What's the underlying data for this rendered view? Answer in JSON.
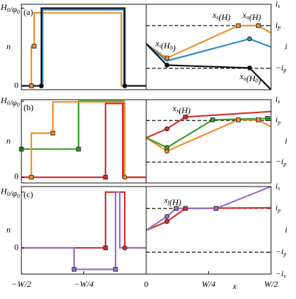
{
  "chart_data": [
    {
      "type": "line",
      "label": "(a)",
      "ylabel": "n",
      "xlim": [
        -0.5,
        0
      ],
      "ylim": [
        -0.05,
        1.05
      ],
      "yticks": [
        0,
        {
          "value": 1,
          "label": "H_0/φ_0"
        }
      ],
      "series": [
        {
          "color": "#f0922e",
          "x": [
            -0.5,
            -0.46,
            -0.46,
            -0.449,
            -0.449,
            -0.1,
            -0.1,
            0
          ],
          "values": [
            0,
            0,
            0.51,
            0.51,
            0.94,
            0.94,
            0,
            0
          ],
          "points": {
            "x": [
              -0.46,
              -0.449
            ],
            "values": [
              0,
              0.51
            ],
            "shapes": [
              "square",
              "square"
            ]
          }
        },
        {
          "color": "#2f8cc4",
          "x": [
            -0.5,
            -0.415,
            -0.415,
            -0.09,
            -0.09,
            0
          ],
          "values": [
            0,
            0,
            0.98,
            0.98,
            0,
            0
          ]
        },
        {
          "color": "#111111",
          "x": [
            -0.5,
            -0.42,
            -0.42,
            -0.086,
            -0.086,
            0
          ],
          "values": [
            0,
            0,
            1,
            1,
            0,
            0
          ],
          "points": {
            "x": [
              -0.42,
              -0.086
            ],
            "values": [
              0,
              0
            ],
            "shapes": [
              "circle",
              "circle"
            ]
          }
        }
      ]
    },
    {
      "type": "line",
      "ylabel": "i",
      "xlim": [
        0,
        0.5
      ],
      "ylim": [
        -2,
        2
      ],
      "yticks": [
        {
          "value": 2,
          "label": "i_s"
        },
        {
          "value": 1,
          "label": "i_p"
        },
        {
          "value": -1,
          "label": "−i_p"
        }
      ],
      "hlines": [
        1,
        -1
      ],
      "annotations": [
        "x_s(H)",
        "x_o(H)",
        "x_i(H_0)",
        "x_o(H_0)"
      ],
      "series": [
        {
          "color": "#f0922e",
          "x": [
            0,
            0.083,
            0.369,
            0.449,
            0.5
          ],
          "values": [
            0.15,
            -0.52,
            1,
            1,
            0.65
          ],
          "points": {
            "x": [
              0.083,
              0.369,
              0.449
            ],
            "values": [
              -0.52,
              1,
              1
            ],
            "shapes": [
              "square",
              "square",
              "square"
            ]
          }
        },
        {
          "color": "#2f8cc4",
          "x": [
            0,
            0.083,
            0.414,
            0.5
          ],
          "values": [
            0.15,
            -0.65,
            0.38,
            0
          ],
          "points": {
            "x": [
              0.414
            ],
            "values": [
              0.38
            ],
            "shapes": [
              "circle"
            ]
          }
        },
        {
          "color": "#111111",
          "x": [
            0,
            0.083,
            0.414,
            0.5
          ],
          "values": [
            0.15,
            -0.85,
            -0.98,
            -2
          ],
          "points": {
            "x": [
              0.083,
              0.414
            ],
            "values": [
              -0.85,
              -0.98
            ],
            "shapes": [
              "circle",
              "circle"
            ]
          }
        }
      ]
    },
    {
      "type": "line",
      "label": "(b)",
      "ylabel": "n",
      "xlim": [
        -0.5,
        0
      ],
      "ylim": [
        -0.075,
        1.02
      ],
      "yticks": [
        0,
        {
          "value": 1,
          "label": "H_0/φ_0"
        }
      ],
      "series": [
        {
          "color": "#3a9e2c",
          "x": [
            -0.5,
            -0.271,
            -0.271,
            -0.091,
            -0.091,
            0
          ],
          "values": [
            0.37,
            0.37,
            1,
            1,
            0,
            0
          ],
          "points": {
            "x": [
              -0.5,
              -0.271
            ],
            "values": [
              0.37,
              0.37
            ],
            "shapes": [
              "square",
              "square"
            ]
          }
        },
        {
          "color": "#f0922e",
          "x": [
            -0.5,
            -0.46,
            -0.46,
            -0.374,
            -0.374,
            -0.086,
            -0.086,
            0
          ],
          "values": [
            0,
            0,
            0.58,
            0.58,
            0.99,
            0.99,
            0,
            0
          ],
          "points": {
            "x": [
              -0.46,
              -0.374,
              -0.086
            ],
            "values": [
              0,
              0.58,
              0
            ],
            "shapes": [
              "square",
              "square",
              "circle"
            ]
          }
        },
        {
          "color": "#d62f2f",
          "x": [
            -0.5,
            -0.163,
            -0.163,
            -0.094,
            -0.094,
            0
          ],
          "values": [
            0,
            0,
            0.97,
            0.97,
            0,
            0
          ],
          "points": {
            "x": [
              -0.163
            ],
            "values": [
              0
            ],
            "shapes": [
              "square"
            ]
          }
        }
      ]
    },
    {
      "type": "line",
      "ylabel": "i",
      "xlim": [
        0,
        0.5
      ],
      "ylim": [
        -2,
        2
      ],
      "yticks": [
        {
          "value": 2,
          "label": "i_s"
        },
        {
          "value": 1,
          "label": "i_p"
        },
        {
          "value": -1,
          "label": "−i_p"
        }
      ],
      "hlines": [
        1,
        -1
      ],
      "annotations": [
        "x_s(H)"
      ],
      "series": [
        {
          "color": "#d62f2f",
          "x": [
            0,
            0.083,
            0.157,
            0.5
          ],
          "values": [
            0.17,
            0.6,
            1.17,
            1.43
          ],
          "points": {
            "x": [
              0.083,
              0.157
            ],
            "values": [
              0.6,
              1.17
            ],
            "shapes": [
              "circle",
              "square"
            ]
          }
        },
        {
          "color": "#f0922e",
          "x": [
            0,
            0.083,
            0.369,
            0.449,
            0.5
          ],
          "values": [
            0.17,
            -0.47,
            1.03,
            1.03,
            0.7
          ],
          "points": {
            "x": [
              0.083,
              0.369,
              0.449
            ],
            "values": [
              -0.47,
              1.03,
              1.03
            ],
            "shapes": [
              "circle",
              "square",
              "square"
            ]
          }
        },
        {
          "color": "#3a9e2c",
          "x": [
            0,
            0.083,
            0.266,
            0.486,
            0.5
          ],
          "values": [
            0.17,
            -0.3,
            1.03,
            1.1,
            1.1
          ],
          "points": {
            "x": [
              0.083,
              0.266,
              0.486
            ],
            "values": [
              -0.3,
              1.03,
              1.1
            ],
            "shapes": [
              "circle",
              "square",
              "square"
            ]
          }
        }
      ]
    },
    {
      "type": "line",
      "label": "(c)",
      "ylabel": "n",
      "xlim": [
        -0.5,
        0
      ],
      "ylim": [
        -0.47,
        1.1
      ],
      "yticks": [
        0,
        {
          "value": 1,
          "label": "H_0/φ_0"
        }
      ],
      "xticks": [
        {
          "value": -0.5,
          "label": "−W/2"
        },
        {
          "value": -0.25,
          "label": "−W/4"
        },
        0
      ],
      "series": [
        {
          "color": "#d62f2f",
          "x": [
            -0.5,
            -0.163,
            -0.163,
            -0.086,
            -0.086,
            0
          ],
          "values": [
            0,
            0,
            1,
            1,
            0,
            0
          ],
          "points": {
            "x": [
              -0.163,
              -0.086
            ],
            "values": [
              0,
              0
            ],
            "shapes": [
              "square",
              "circle"
            ]
          }
        },
        {
          "color": "#9b6fc6",
          "x": [
            -0.5,
            -0.289,
            -0.289,
            -0.123,
            -0.123,
            -0.106,
            -0.106,
            0
          ],
          "values": [
            0,
            0,
            -0.385,
            -0.385,
            1,
            1,
            0,
            0
          ],
          "points": {
            "x": [
              -0.289,
              -0.123
            ],
            "values": [
              -0.385,
              -0.385
            ],
            "shapes": [
              "square",
              "square"
            ]
          }
        }
      ]
    },
    {
      "type": "line",
      "ylabel": "i",
      "xlabel": "x",
      "xlim": [
        0,
        0.5
      ],
      "ylim": [
        -2,
        2
      ],
      "yticks": [
        {
          "value": 2,
          "label": "i_s"
        },
        {
          "value": 1,
          "label": "i_p"
        },
        {
          "value": -1,
          "label": "−i_p"
        },
        {
          "value": -2,
          "label": "−i_s"
        }
      ],
      "xticks": [
        {
          "value": 0.25,
          "label": "W/4"
        },
        {
          "value": 0.5,
          "label": "W/2"
        }
      ],
      "hlines": [
        1,
        -1
      ],
      "annotations": [
        "x_f(H)"
      ],
      "series": [
        {
          "color": "#d62f2f",
          "x": [
            0,
            0.083,
            0.157,
            0.5
          ],
          "values": [
            0,
            0.4,
            1,
            1.03
          ],
          "points": {
            "x": [
              0.083,
              0.157
            ],
            "values": [
              0.4,
              1
            ],
            "shapes": [
              "circle",
              "square"
            ]
          }
        },
        {
          "color": "#9b6fc6",
          "x": [
            0,
            0.083,
            0.12,
            0.28,
            0.5
          ],
          "values": [
            0,
            0.63,
            1,
            1,
            2
          ],
          "points": {
            "x": [
              0.083,
              0.12,
              0.28
            ],
            "values": [
              0.63,
              1,
              1
            ],
            "shapes": [
              "circle",
              "square",
              "square"
            ]
          }
        }
      ]
    }
  ]
}
